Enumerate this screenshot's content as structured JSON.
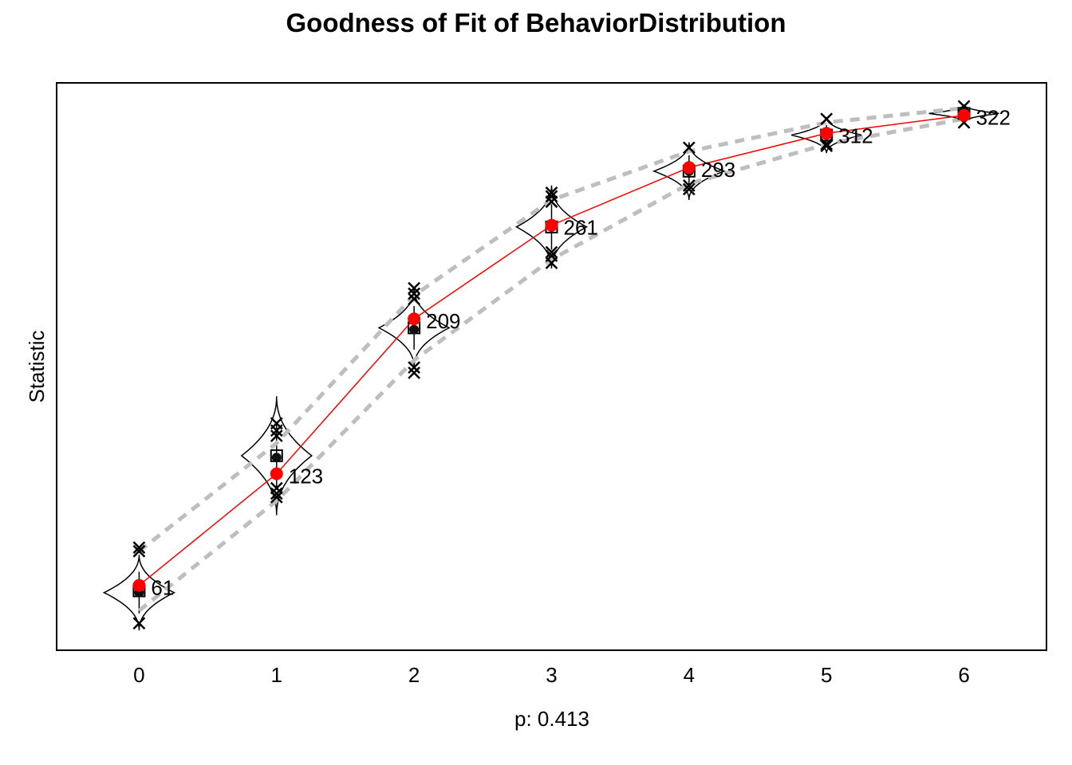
{
  "chart_data": {
    "type": "line",
    "title": "Goodness of Fit of BehaviorDistribution",
    "xlabel": "p: 0.413",
    "ylabel": "Statistic",
    "x": [
      0,
      1,
      2,
      3,
      4,
      5,
      6
    ],
    "xlim": [
      -0.6,
      6.6
    ],
    "ylim": [
      25,
      340
    ],
    "grid": false,
    "series": [
      {
        "role": "observed",
        "color": "#ff0000",
        "values": [
          61,
          123,
          209,
          261,
          293,
          312,
          322
        ]
      },
      {
        "role": "simulated-upper-bound",
        "color": "#bebebe",
        "values": [
          80,
          140,
          222,
          275,
          302,
          318,
          326
        ]
      },
      {
        "role": "simulated-lower-bound",
        "color": "#bebebe",
        "values": [
          47,
          108,
          186,
          242,
          284,
          306,
          320
        ]
      }
    ],
    "simulated_mean": [
      58,
      133,
      204,
      260,
      291,
      311,
      323
    ],
    "simulated_median": [
      57,
      132,
      203,
      260,
      291,
      311,
      323
    ],
    "violins": [
      {
        "center": 57,
        "spread": 21
      },
      {
        "center": 133,
        "spread": 33
      },
      {
        "center": 204,
        "spread": 22
      },
      {
        "center": 260,
        "spread": 23
      },
      {
        "center": 291,
        "spread": 16
      },
      {
        "center": 311,
        "spread": 10
      },
      {
        "center": 323,
        "spread": 5
      }
    ],
    "outliers": [
      [
        80,
        82,
        40
      ],
      [
        144,
        147,
        151,
        115,
        112,
        110
      ],
      [
        226,
        223,
        220,
        182,
        179
      ],
      [
        279,
        277,
        274,
        246,
        244,
        240
      ],
      [
        304,
        283,
        281
      ],
      [
        320,
        306,
        305
      ],
      [
        327,
        318
      ]
    ],
    "data_labels": [
      "61",
      "123",
      "209",
      "261",
      "293",
      "312",
      "322"
    ]
  }
}
